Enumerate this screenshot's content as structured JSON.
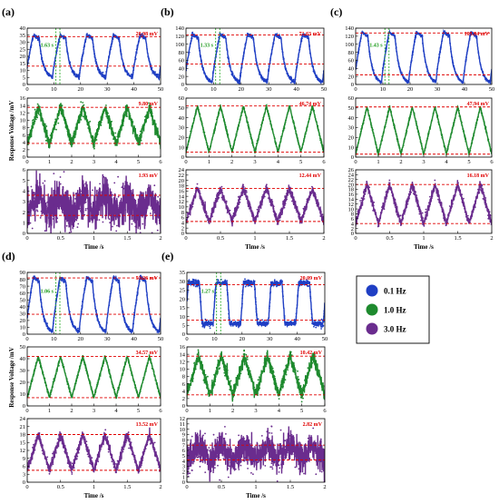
{
  "chart_data": {
    "type": "line",
    "colors": {
      "0.1 Hz": "#1f3fc4",
      "1.0 Hz": "#1e8a2e",
      "3.0 Hz": "#6a2c8e",
      "reference_lines": "#e00000",
      "period_markers": "#2fae2f"
    },
    "shared_ylabel": "Response Voltage /mV",
    "shared_xlabel": "Time /s",
    "legend": {
      "position": "right-middle",
      "entries": [
        "0.1 Hz",
        "1.0 Hz",
        "3.0 Hz"
      ]
    },
    "panels": [
      {
        "label": "(a)",
        "rows": [
          {
            "series": "0.1 Hz",
            "xlim": [
              0,
              50
            ],
            "ylim": [
              0,
              40
            ],
            "xticks": [
              0,
              10,
              20,
              30,
              40,
              50
            ],
            "yticks": [
              0,
              5,
              10,
              15,
              20,
              25,
              30,
              35,
              40
            ],
            "annotation": "20.98 mV",
            "period_label": "1.63 s",
            "ref_lines": [
              34,
              13
            ],
            "waveform": {
              "shape": "rise_decay",
              "cycles": 5,
              "phase": 0.05,
              "min": 5,
              "max": 35,
              "noise": 0.6
            }
          },
          {
            "series": "1.0 Hz",
            "xlim": [
              0,
              6
            ],
            "ylim": [
              0,
              16
            ],
            "xticks": [
              0,
              1,
              2,
              3,
              4,
              5,
              6
            ],
            "yticks": [
              0,
              2,
              4,
              6,
              8,
              10,
              12,
              14,
              16
            ],
            "annotation": "9.80 mV",
            "ref_lines": [
              13.5,
              3.7
            ],
            "waveform": {
              "shape": "triangle",
              "cycles": 6,
              "phase": 0.0,
              "min": 3.7,
              "max": 13.5,
              "noise": 0.7
            }
          },
          {
            "series": "3.0 Hz",
            "xlim": [
              0,
              2
            ],
            "ylim": [
              0,
              6
            ],
            "xticks": [
              0,
              0.5,
              1,
              1.5,
              2
            ],
            "yticks": [
              0,
              1,
              2,
              3,
              4,
              5,
              6
            ],
            "annotation": "1.93 mV",
            "ref_lines": [
              3.6,
              1.7
            ],
            "waveform": {
              "shape": "triangle",
              "cycles": 6,
              "phase": 0.0,
              "min": 1.7,
              "max": 3.6,
              "noise": 0.9
            }
          }
        ]
      },
      {
        "label": "(b)",
        "rows": [
          {
            "series": "0.1 Hz",
            "xlim": [
              0,
              50
            ],
            "ylim": [
              0,
              140
            ],
            "xticks": [
              0,
              10,
              20,
              30,
              40,
              50
            ],
            "yticks": [
              0,
              20,
              40,
              60,
              80,
              100,
              120,
              140
            ],
            "annotation": "71.63 mV",
            "period_label": "1.33 s",
            "ref_lines": [
              123,
              51
            ],
            "waveform": {
              "shape": "rise_decay",
              "cycles": 5,
              "phase": 0.05,
              "min": 5,
              "max": 125,
              "noise": 2
            }
          },
          {
            "series": "1.0 Hz",
            "xlim": [
              0,
              6
            ],
            "ylim": [
              0,
              60
            ],
            "xticks": [
              0,
              1,
              2,
              3,
              4,
              5,
              6
            ],
            "yticks": [
              0,
              10,
              20,
              30,
              40,
              50,
              60
            ],
            "annotation": "46.74 mV",
            "ref_lines": [
              52,
              5
            ],
            "waveform": {
              "shape": "triangle",
              "cycles": 6,
              "phase": 0.0,
              "min": 5,
              "max": 52,
              "noise": 0.6
            }
          },
          {
            "series": "3.0 Hz",
            "xlim": [
              0,
              2
            ],
            "ylim": [
              0,
              24
            ],
            "xticks": [
              0,
              0.5,
              1,
              1.5,
              2
            ],
            "yticks": [
              0,
              2,
              4,
              6,
              8,
              10,
              12,
              14,
              16,
              18,
              20,
              22,
              24
            ],
            "annotation": "12.44 mV",
            "ref_lines": [
              17,
              4.5
            ],
            "waveform": {
              "shape": "triangle",
              "cycles": 6,
              "phase": 0.0,
              "min": 4.5,
              "max": 17,
              "noise": 0.8
            }
          }
        ]
      },
      {
        "label": "(c)",
        "rows": [
          {
            "series": "0.1 Hz",
            "xlim": [
              0,
              50
            ],
            "ylim": [
              0,
              140
            ],
            "xticks": [
              0,
              10,
              20,
              30,
              40,
              50
            ],
            "yticks": [
              0,
              20,
              40,
              60,
              80,
              100,
              120,
              140
            ],
            "annotation": "103.84 mV",
            "period_label": "1.43 s",
            "ref_lines": [
              128,
              24
            ],
            "waveform": {
              "shape": "rise_decay",
              "cycles": 5,
              "phase": 0.05,
              "min": 5,
              "max": 130,
              "noise": 1.5
            }
          },
          {
            "series": "1.0 Hz",
            "xlim": [
              0,
              6
            ],
            "ylim": [
              0,
              60
            ],
            "xticks": [
              0,
              1,
              2,
              3,
              4,
              5,
              6
            ],
            "yticks": [
              0,
              10,
              20,
              30,
              40,
              50,
              60
            ],
            "annotation": "47.94 mV",
            "ref_lines": [
              51,
              3
            ],
            "waveform": {
              "shape": "triangle",
              "cycles": 6,
              "phase": 0.0,
              "min": 3,
              "max": 51,
              "noise": 0.6
            }
          },
          {
            "series": "3.0 Hz",
            "xlim": [
              0,
              2
            ],
            "ylim": [
              0,
              26
            ],
            "xticks": [
              0,
              0.5,
              1,
              1.5,
              2
            ],
            "yticks": [
              0,
              2,
              4,
              6,
              8,
              10,
              12,
              14,
              16,
              18,
              20,
              22,
              24,
              26
            ],
            "annotation": "16.18 mV",
            "ref_lines": [
              20,
              4
            ],
            "waveform": {
              "shape": "triangle",
              "cycles": 6,
              "phase": 0.0,
              "min": 4,
              "max": 20,
              "noise": 0.8
            }
          }
        ]
      },
      {
        "label": "(d)",
        "rows": [
          {
            "series": "0.1 Hz",
            "xlim": [
              0,
              50
            ],
            "ylim": [
              0,
              90
            ],
            "xticks": [
              0,
              10,
              20,
              30,
              40,
              50
            ],
            "yticks": [
              0,
              10,
              20,
              30,
              40,
              50,
              60,
              70,
              80,
              90
            ],
            "annotation": "53.26 mV",
            "period_label": "1.06 s",
            "ref_lines": [
              82,
              29
            ],
            "waveform": {
              "shape": "rise_decay",
              "cycles": 5,
              "phase": 0.05,
              "min": 3,
              "max": 83,
              "noise": 1.2
            }
          },
          {
            "series": "1.0 Hz",
            "xlim": [
              0,
              6
            ],
            "ylim": [
              0,
              50
            ],
            "xticks": [
              0,
              1,
              2,
              3,
              4,
              5,
              6
            ],
            "yticks": [
              0,
              10,
              20,
              30,
              40,
              50
            ],
            "annotation": "34.57 mV",
            "ref_lines": [
              42,
              7
            ],
            "waveform": {
              "shape": "triangle",
              "cycles": 6,
              "phase": 0.0,
              "min": 7,
              "max": 42,
              "noise": 0.6
            }
          },
          {
            "series": "3.0 Hz",
            "xlim": [
              0,
              2
            ],
            "ylim": [
              0,
              24
            ],
            "xticks": [
              0,
              0.5,
              1,
              1.5,
              2
            ],
            "yticks": [
              0,
              3,
              6,
              9,
              12,
              15,
              18,
              21,
              24
            ],
            "annotation": "13.52 mV",
            "ref_lines": [
              18,
              4.5
            ],
            "waveform": {
              "shape": "triangle",
              "cycles": 6,
              "phase": 0.0,
              "min": 4.5,
              "max": 18,
              "noise": 0.8
            }
          }
        ]
      },
      {
        "label": "(e)",
        "rows": [
          {
            "series": "0.1 Hz",
            "xlim": [
              0,
              50
            ],
            "ylim": [
              0,
              35
            ],
            "xticks": [
              0,
              10,
              20,
              30,
              40,
              50
            ],
            "yticks": [
              0,
              5,
              10,
              15,
              20,
              25,
              30,
              35
            ],
            "annotation": "20.09 mV",
            "period_label": "1.27 s",
            "ref_lines": [
              28,
              8
            ],
            "waveform": {
              "shape": "square",
              "cycles": 5,
              "phase": 0.05,
              "min": 6,
              "max": 29,
              "noise": 0.8
            }
          },
          {
            "series": "1.0 Hz",
            "xlim": [
              0,
              6
            ],
            "ylim": [
              0,
              16
            ],
            "xticks": [
              0,
              1,
              2,
              3,
              4,
              5,
              6
            ],
            "yticks": [
              0,
              2,
              4,
              6,
              8,
              10,
              12,
              14,
              16
            ],
            "annotation": "10.42 mV",
            "ref_lines": [
              13.5,
              3
            ],
            "waveform": {
              "shape": "triangle",
              "cycles": 6,
              "phase": 0.0,
              "min": 3,
              "max": 13.5,
              "noise": 0.8
            }
          },
          {
            "series": "3.0 Hz",
            "xlim": [
              0,
              2
            ],
            "ylim": [
              0,
              12
            ],
            "xticks": [
              0,
              0.5,
              1,
              1.5,
              2
            ],
            "yticks": [
              0,
              1,
              2,
              3,
              4,
              5,
              6,
              7,
              8,
              9,
              10,
              11,
              12
            ],
            "annotation": "2.82 mV",
            "ref_lines": [
              7,
              4.2
            ],
            "waveform": {
              "shape": "triangle",
              "cycles": 6,
              "phase": 0.0,
              "min": 4.2,
              "max": 7,
              "noise": 1.4
            }
          }
        ]
      }
    ]
  }
}
